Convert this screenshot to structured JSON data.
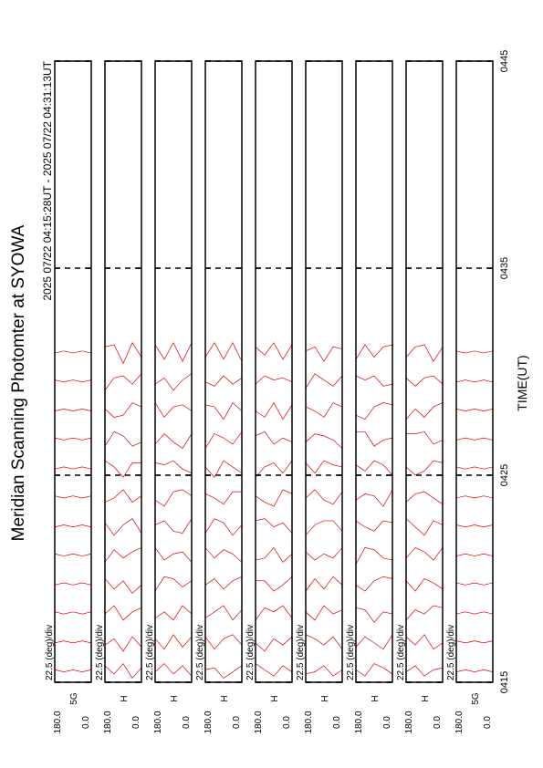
{
  "chart_data": {
    "type": "msp",
    "title": "Meridian Scanning Photomter at SYOWA",
    "subtitle": "2025 07/22 04:15:28UT - 2025 07/22 04:31:13UT",
    "xlabel": "TIME(UT)",
    "xlim": [
      0,
      30
    ],
    "xticks": [
      {
        "value": 0,
        "label": "0415"
      },
      {
        "value": 10,
        "label": "0425"
      },
      {
        "value": 20,
        "label": "0435"
      },
      {
        "value": 30,
        "label": "0445"
      }
    ],
    "grid": true,
    "color": "#e00000",
    "angles": [
      0,
      45,
      90,
      135,
      180
    ],
    "ylim": [
      0,
      180
    ],
    "yticks": [
      {
        "value": 180,
        "label": "180.0"
      },
      {
        "value": 0,
        "label": "0.0"
      }
    ],
    "scale_label": "22.5 (deg)/div",
    "times": [
      0.5,
      1.9,
      3.3,
      4.7,
      6.1,
      7.5,
      8.9,
      10.3,
      11.7,
      13.1,
      14.5,
      15.9
    ],
    "panels": [
      {
        "name": "5G",
        "profiles": [
          [
            0.1,
            0,
            0.1,
            0,
            0.1
          ],
          [
            0,
            0.1,
            0,
            0.1,
            0
          ],
          [
            0.1,
            0,
            0.1,
            0,
            0.1
          ],
          [
            0,
            0.1,
            0,
            0.1,
            0
          ],
          [
            0.1,
            0,
            0.1,
            0,
            0.1
          ],
          [
            0,
            0.1,
            0,
            0.1,
            0
          ],
          [
            0.1,
            0,
            0.1,
            0,
            0.1
          ],
          [
            0,
            0.1,
            0,
            0.1,
            0
          ],
          [
            0.1,
            0,
            0.1,
            0,
            0.1
          ],
          [
            0,
            0.1,
            0,
            0.1,
            0
          ],
          [
            0.1,
            0,
            0.1,
            0,
            0.1
          ],
          [
            0,
            0.1,
            0,
            0.1,
            0
          ]
        ]
      },
      {
        "name": "H",
        "profiles": [
          [
            0.2,
            -0.3,
            0.4,
            -0.1,
            0.3
          ],
          [
            -0.2,
            0.3,
            -0.4,
            0.2,
            -0.1
          ],
          [
            0.3,
            0.1,
            -0.3,
            0.4,
            0
          ],
          [
            0,
            -0.4,
            0.2,
            -0.2,
            0.3
          ],
          [
            0.4,
            0.2,
            -0.1,
            0.3,
            -0.3
          ],
          [
            -0.3,
            0.4,
            0.1,
            -0.4,
            0.2
          ],
          [
            0.1,
            -0.2,
            0.4,
            0,
            -0.2
          ],
          [
            0.3,
            0.3,
            -0.4,
            0.1,
            0.4
          ],
          [
            -0.1,
            -0.3,
            0.2,
            0.4,
            -0.3
          ],
          [
            0.2,
            0.4,
            -0.2,
            -0.3,
            0.1
          ],
          [
            0.4,
            -0.1,
            0.3,
            0.2,
            -0.4
          ],
          [
            -0.2,
            0.5,
            -0.5,
            0.4,
            0.3
          ]
        ]
      },
      {
        "name": "H",
        "profiles": [
          [
            -0.2,
            0.3,
            -0.1,
            0.4,
            0
          ],
          [
            0.3,
            -0.2,
            0.4,
            -0.3,
            0.2
          ],
          [
            0,
            0.4,
            -0.3,
            0.1,
            -0.2
          ],
          [
            0.2,
            -0.1,
            0.3,
            0.4,
            -0.3
          ],
          [
            -0.3,
            0.2,
            0.1,
            -0.2,
            0.4
          ],
          [
            0.4,
            -0.3,
            -0.2,
            0.3,
            0.1
          ],
          [
            0.1,
            0.4,
            0.3,
            -0.4,
            -0.1
          ],
          [
            -0.2,
            0,
            0.4,
            0.2,
            0.3
          ],
          [
            0.3,
            -0.4,
            -0.1,
            0.3,
            -0.2
          ],
          [
            0,
            0.3,
            0.2,
            -0.3,
            0.4
          ],
          [
            0.4,
            0.1,
            -0.4,
            0.2,
            -0.1
          ],
          [
            0.5,
            -0.4,
            0.5,
            -0.3,
            0.4
          ]
        ]
      },
      {
        "name": "H",
        "profiles": [
          [
            0.3,
            0,
            -0.3,
            0.2,
            0.1
          ],
          [
            -0.1,
            0.4,
            0.2,
            -0.3,
            0.3
          ],
          [
            0.2,
            -0.3,
            0.4,
            0.1,
            -0.2
          ],
          [
            0.4,
            0.2,
            -0.2,
            0.3,
            0
          ],
          [
            -0.3,
            0.1,
            0.3,
            -0.1,
            0.4
          ],
          [
            0.1,
            -0.4,
            0.2,
            0.4,
            -0.3
          ],
          [
            0.3,
            0.3,
            -0.3,
            0,
            0.2
          ],
          [
            -0.2,
            0.1,
            0.4,
            -0.4,
            0.1
          ],
          [
            0.4,
            -0.2,
            0.1,
            0.3,
            -0.4
          ],
          [
            0,
            0.4,
            -0.4,
            0.2,
            0.3
          ],
          [
            0.2,
            -0.1,
            0.3,
            -0.2,
            0
          ],
          [
            -0.4,
            0.5,
            -0.3,
            0.5,
            -0.2
          ]
        ]
      },
      {
        "name": "H",
        "profiles": [
          [
            0,
            0.3,
            -0.2,
            0.1,
            0.4
          ],
          [
            0.3,
            -0.1,
            0.2,
            -0.4,
            0
          ],
          [
            -0.2,
            0.4,
            0.1,
            0.3,
            -0.3
          ],
          [
            0.4,
            0,
            -0.3,
            0.2,
            0.2
          ],
          [
            0.1,
            -0.3,
            0.4,
            -0.1,
            -0.2
          ],
          [
            -0.3,
            0.2,
            0,
            0.4,
            0.3
          ],
          [
            0.2,
            0.4,
            -0.4,
            -0.2,
            0.1
          ],
          [
            0.4,
            -0.2,
            0.3,
            0.1,
            -0.4
          ],
          [
            -0.1,
            0.1,
            -0.2,
            0.4,
            0.2
          ],
          [
            0.3,
            -0.4,
            0.4,
            -0.3,
            0
          ],
          [
            0,
            0.2,
            0.1,
            0.3,
            -0.1
          ],
          [
            0.4,
            -0.3,
            0.5,
            -0.1,
            0.3
          ]
        ]
      },
      {
        "name": "H",
        "profiles": [
          [
            0.1,
            -0.2,
            0.3,
            0,
            -0.1
          ],
          [
            -0.3,
            0.3,
            -0.1,
            0.2,
            0.4
          ],
          [
            0.2,
            0,
            0.4,
            -0.3,
            0.1
          ],
          [
            0,
            0.4,
            -0.2,
            0.3,
            -0.3
          ],
          [
            0.4,
            -0.1,
            0.1,
            -0.2,
            0.2
          ],
          [
            -0.2,
            0.3,
            0.3,
            0.1,
            -0.4
          ],
          [
            0.3,
            -0.3,
            -0.1,
            0.4,
            0
          ],
          [
            0.1,
            0.2,
            0.4,
            -0.2,
            0.3
          ],
          [
            -0.4,
            0,
            0.2,
            0.3,
            -0.1
          ],
          [
            0.2,
            0.4,
            -0.3,
            0,
            0.2
          ],
          [
            0.3,
            -0.2,
            0.1,
            0.4,
            -0.3
          ],
          [
            0.2,
            0.3,
            -0.4,
            0.3,
            0.1
          ]
        ]
      },
      {
        "name": "H",
        "profiles": [
          [
            -0.1,
            0.2,
            0.4,
            -0.2,
            0.1
          ],
          [
            0.4,
            -0.3,
            0,
            0.3,
            -0.2
          ],
          [
            0,
            0.1,
            -0.4,
            0.2,
            0.3
          ],
          [
            0.3,
            0.4,
            0.2,
            -0.3,
            0
          ],
          [
            -0.2,
            -0.1,
            0.3,
            0.4,
            -0.4
          ],
          [
            0.2,
            0.3,
            -0.2,
            0,
            0.3
          ],
          [
            0.4,
            -0.4,
            0.1,
            0.2,
            -0.1
          ],
          [
            -0.3,
            0.2,
            0.4,
            -0.1,
            0.2
          ],
          [
            0.1,
            0,
            -0.3,
            0.4,
            0.4
          ],
          [
            0.3,
            0.4,
            0.2,
            -0.4,
            -0.2
          ],
          [
            -0.1,
            -0.2,
            0.3,
            0.1,
            0.3
          ],
          [
            0.4,
            0.3,
            -0.2,
            0.4,
            -0.3
          ]
        ]
      },
      {
        "name": "H",
        "profiles": [
          [
            0.2,
            0.1,
            -0.2,
            0.3,
            0
          ],
          [
            0,
            -0.3,
            0.4,
            -0.1,
            0.3
          ],
          [
            0.3,
            0.4,
            0,
            0.2,
            -0.3
          ],
          [
            -0.2,
            0.1,
            0.3,
            -0.3,
            0.2
          ],
          [
            0.4,
            -0.2,
            0.2,
            0.4,
            -0.1
          ],
          [
            0.1,
            0.3,
            -0.4,
            0,
            0.4
          ],
          [
            -0.3,
            0,
            0.3,
            0.2,
            -0.2
          ],
          [
            0.3,
            0.4,
            -0.1,
            -0.3,
            0.1
          ],
          [
            0,
            -0.2,
            0.4,
            0.3,
            0.3
          ],
          [
            0.4,
            0.2,
            -0.3,
            0.1,
            -0.4
          ],
          [
            -0.1,
            0.3,
            0.2,
            -0.2,
            0.2
          ],
          [
            0.3,
            -0.4,
            0.4,
            0.3,
            -0.2
          ]
        ]
      },
      {
        "name": "5G",
        "profiles": [
          [
            0,
            0.1,
            0,
            0.1,
            0
          ],
          [
            0.1,
            0,
            0.1,
            0,
            0.1
          ],
          [
            0,
            0.1,
            0,
            0.1,
            0
          ],
          [
            0.1,
            0,
            0.1,
            0,
            0.1
          ],
          [
            0,
            0.1,
            0,
            0.1,
            0
          ],
          [
            0.1,
            0,
            0.1,
            0,
            0.1
          ],
          [
            0,
            0.1,
            0,
            0.1,
            0
          ],
          [
            0.1,
            0,
            0.1,
            0,
            0.1
          ],
          [
            0,
            0.1,
            0,
            0.1,
            0
          ],
          [
            0.1,
            0,
            0.1,
            0,
            0.1
          ],
          [
            0,
            0.1,
            0,
            0.1,
            0
          ],
          [
            0.1,
            0,
            0.1,
            0,
            0.1
          ]
        ]
      }
    ]
  }
}
